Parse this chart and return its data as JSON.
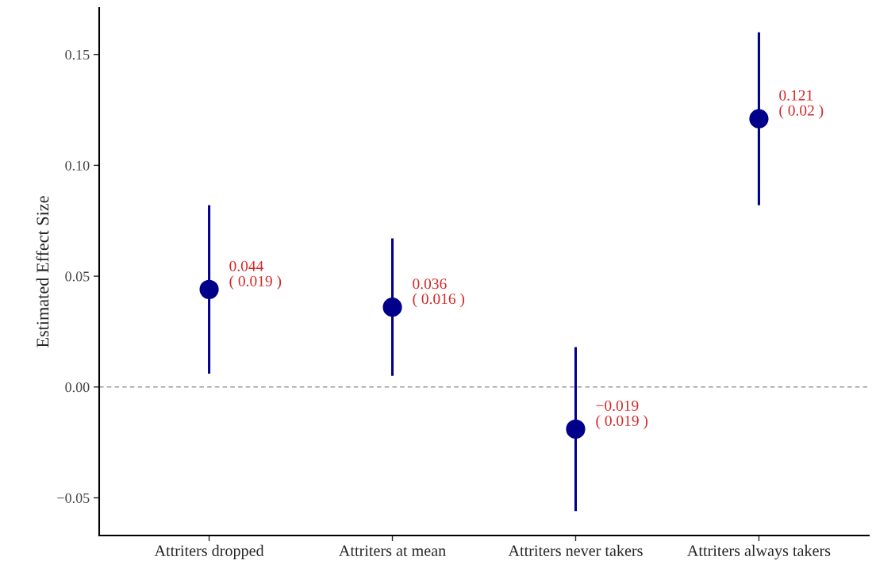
{
  "chart_data": {
    "type": "scatter",
    "ylabel": "Estimated Effect Size",
    "categories": [
      "Attriters dropped",
      "Attriters at mean",
      "Attriters never takers",
      "Attriters always takers"
    ],
    "series": [
      {
        "color": "#00008b",
        "values": [
          0.044,
          0.036,
          -0.019,
          0.121
        ],
        "errors": [
          [
            0.006,
            0.082
          ],
          [
            0.005,
            0.067
          ],
          [
            -0.056,
            0.018
          ],
          [
            0.082,
            0.16
          ]
        ],
        "value_labels": [
          "0.044\n( 0.019 )",
          "0.036\n( 0.016 )",
          "−0.019\n( 0.019 )",
          "0.121\n( 0.02 )"
        ]
      }
    ],
    "marker": "circle",
    "ylim": [
      -0.067,
      0.171
    ],
    "yticks": [
      {
        "value": -0.05,
        "label": "−0.05"
      },
      {
        "value": 0.0,
        "label": "0.00"
      },
      {
        "value": 0.05,
        "label": "0.05"
      },
      {
        "value": 0.1,
        "label": "0.10"
      },
      {
        "value": 0.15,
        "label": "0.15"
      }
    ],
    "ref_lines": [
      {
        "axis": "y",
        "value": 0,
        "color": "#999999",
        "line_style": "dashed"
      }
    ],
    "grid": false
  }
}
